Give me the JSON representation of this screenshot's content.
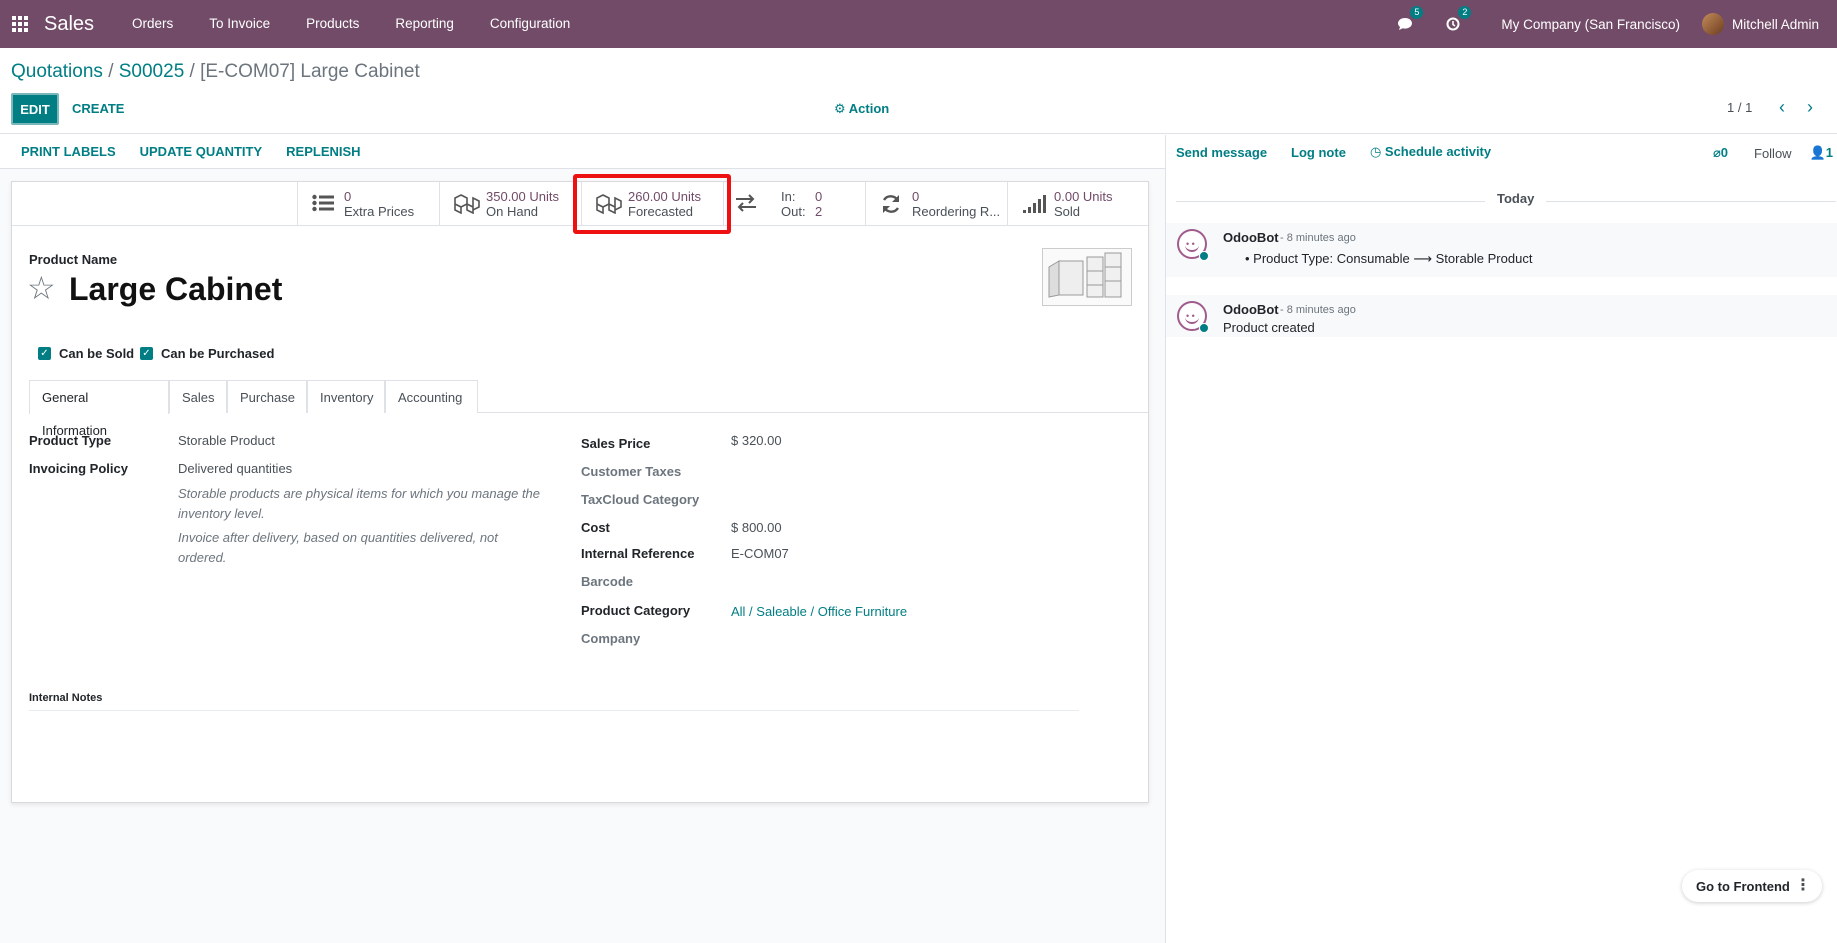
{
  "topbar": {
    "app_name": "Sales",
    "menu": [
      "Orders",
      "To Invoice",
      "Products",
      "Reporting",
      "Configuration"
    ],
    "messages_badge": "5",
    "activities_badge": "2",
    "company": "My Company (San Francisco)",
    "user": "Mitchell Admin"
  },
  "control_panel": {
    "breadcrumb": {
      "item1": "Quotations",
      "item2": "S00025",
      "active": "[E-COM07] Large Cabinet",
      "sep": "/"
    },
    "edit_label": "EDIT",
    "create_label": "CREATE",
    "action_label": "Action",
    "pager": "1 / 1"
  },
  "status_buttons": [
    "PRINT LABELS",
    "UPDATE QUANTITY",
    "REPLENISH"
  ],
  "smart_buttons": {
    "extra_prices": {
      "value": "0",
      "label": "Extra Prices"
    },
    "on_hand": {
      "value": "350.00 Units",
      "label": "On Hand"
    },
    "forecasted": {
      "value": "260.00 Units",
      "label": "Forecasted"
    },
    "in_out": {
      "in_label": "In:",
      "in_value": "0",
      "out_label": "Out:",
      "out_value": "2"
    },
    "reordering": {
      "value": "0",
      "label": "Reordering R..."
    },
    "sold": {
      "value": "0.00 Units",
      "label": "Sold"
    }
  },
  "form": {
    "name_label": "Product Name",
    "name": "Large Cabinet",
    "can_be_sold": "Can be Sold",
    "can_be_purchased": "Can be Purchased",
    "tabs": [
      "General Information",
      "Sales",
      "Purchase",
      "Inventory",
      "Accounting"
    ],
    "left_fields": {
      "product_type_label": "Product Type",
      "product_type": "Storable Product",
      "invoicing_policy_label": "Invoicing Policy",
      "invoicing_policy": "Delivered quantities",
      "help1": "Storable products are physical items for which you manage the inventory level.",
      "help2": "Invoice after delivery, based on quantities delivered, not ordered."
    },
    "right_fields": {
      "sales_price_label": "Sales Price",
      "sales_price": "$ 320.00",
      "customer_taxes_label": "Customer Taxes",
      "taxcloud_label": "TaxCloud Category",
      "cost_label": "Cost",
      "cost": "$ 800.00",
      "internal_ref_label": "Internal Reference",
      "internal_ref": "E-COM07",
      "barcode_label": "Barcode",
      "category_label": "Product Category",
      "category": "All / Saleable / Office Furniture",
      "company_label": "Company"
    },
    "internal_notes_label": "Internal Notes"
  },
  "chatter": {
    "send_message": "Send message",
    "log_note": "Log note",
    "schedule_activity": "Schedule activity",
    "attachments": "0",
    "follow": "Follow",
    "followers": "1",
    "today": "Today",
    "messages": [
      {
        "author": "OdooBot",
        "when": "- 8 minutes ago",
        "body": "Product Type: Consumable ⟶ Storable Product"
      },
      {
        "author": "OdooBot",
        "when": "- 8 minutes ago",
        "body": "Product created"
      }
    ]
  },
  "go_frontend": "Go to Frontend"
}
